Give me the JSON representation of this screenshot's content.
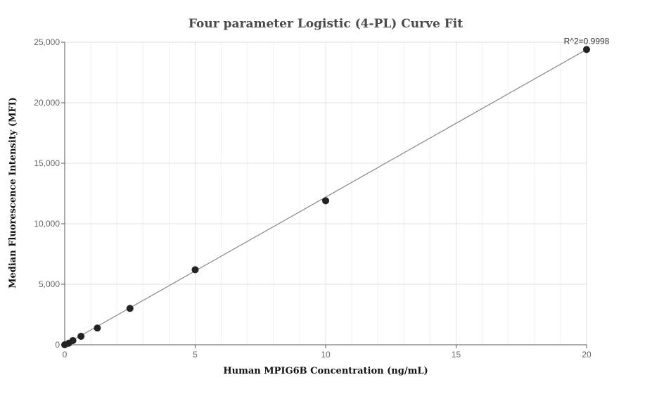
{
  "chart_data": {
    "type": "scatter",
    "title": "Four parameter Logistic (4-PL) Curve Fit",
    "xlabel": "Human MPIG6B Concentration (ng/mL)",
    "ylabel": "Median Fluorescence Intensity (MFI)",
    "xlim": [
      0,
      20
    ],
    "ylim": [
      0,
      25000
    ],
    "x_ticks": [
      0,
      5,
      10,
      15,
      20
    ],
    "x_tick_labels": [
      "0",
      "5",
      "10",
      "15",
      "20"
    ],
    "y_ticks": [
      0,
      5000,
      10000,
      15000,
      20000,
      25000
    ],
    "y_tick_labels": [
      "0",
      "5,000",
      "10,000",
      "15,000",
      "20,000",
      "25,000"
    ],
    "grid": true,
    "series": [
      {
        "points": [
          {
            "x": 0,
            "y": 0
          },
          {
            "x": 0.156,
            "y": 130
          },
          {
            "x": 0.313,
            "y": 350
          },
          {
            "x": 0.625,
            "y": 700
          },
          {
            "x": 1.25,
            "y": 1380
          },
          {
            "x": 2.5,
            "y": 3000
          },
          {
            "x": 5,
            "y": 6200
          },
          {
            "x": 10,
            "y": 11900
          },
          {
            "x": 20,
            "y": 24400
          }
        ],
        "color": "#222222"
      }
    ],
    "fit_line": {
      "x": [
        0,
        20
      ],
      "y": [
        0,
        24400
      ],
      "color": "#888888"
    },
    "annotation": {
      "text": "R^2=0.9998",
      "x": 20,
      "y": 24400
    }
  }
}
